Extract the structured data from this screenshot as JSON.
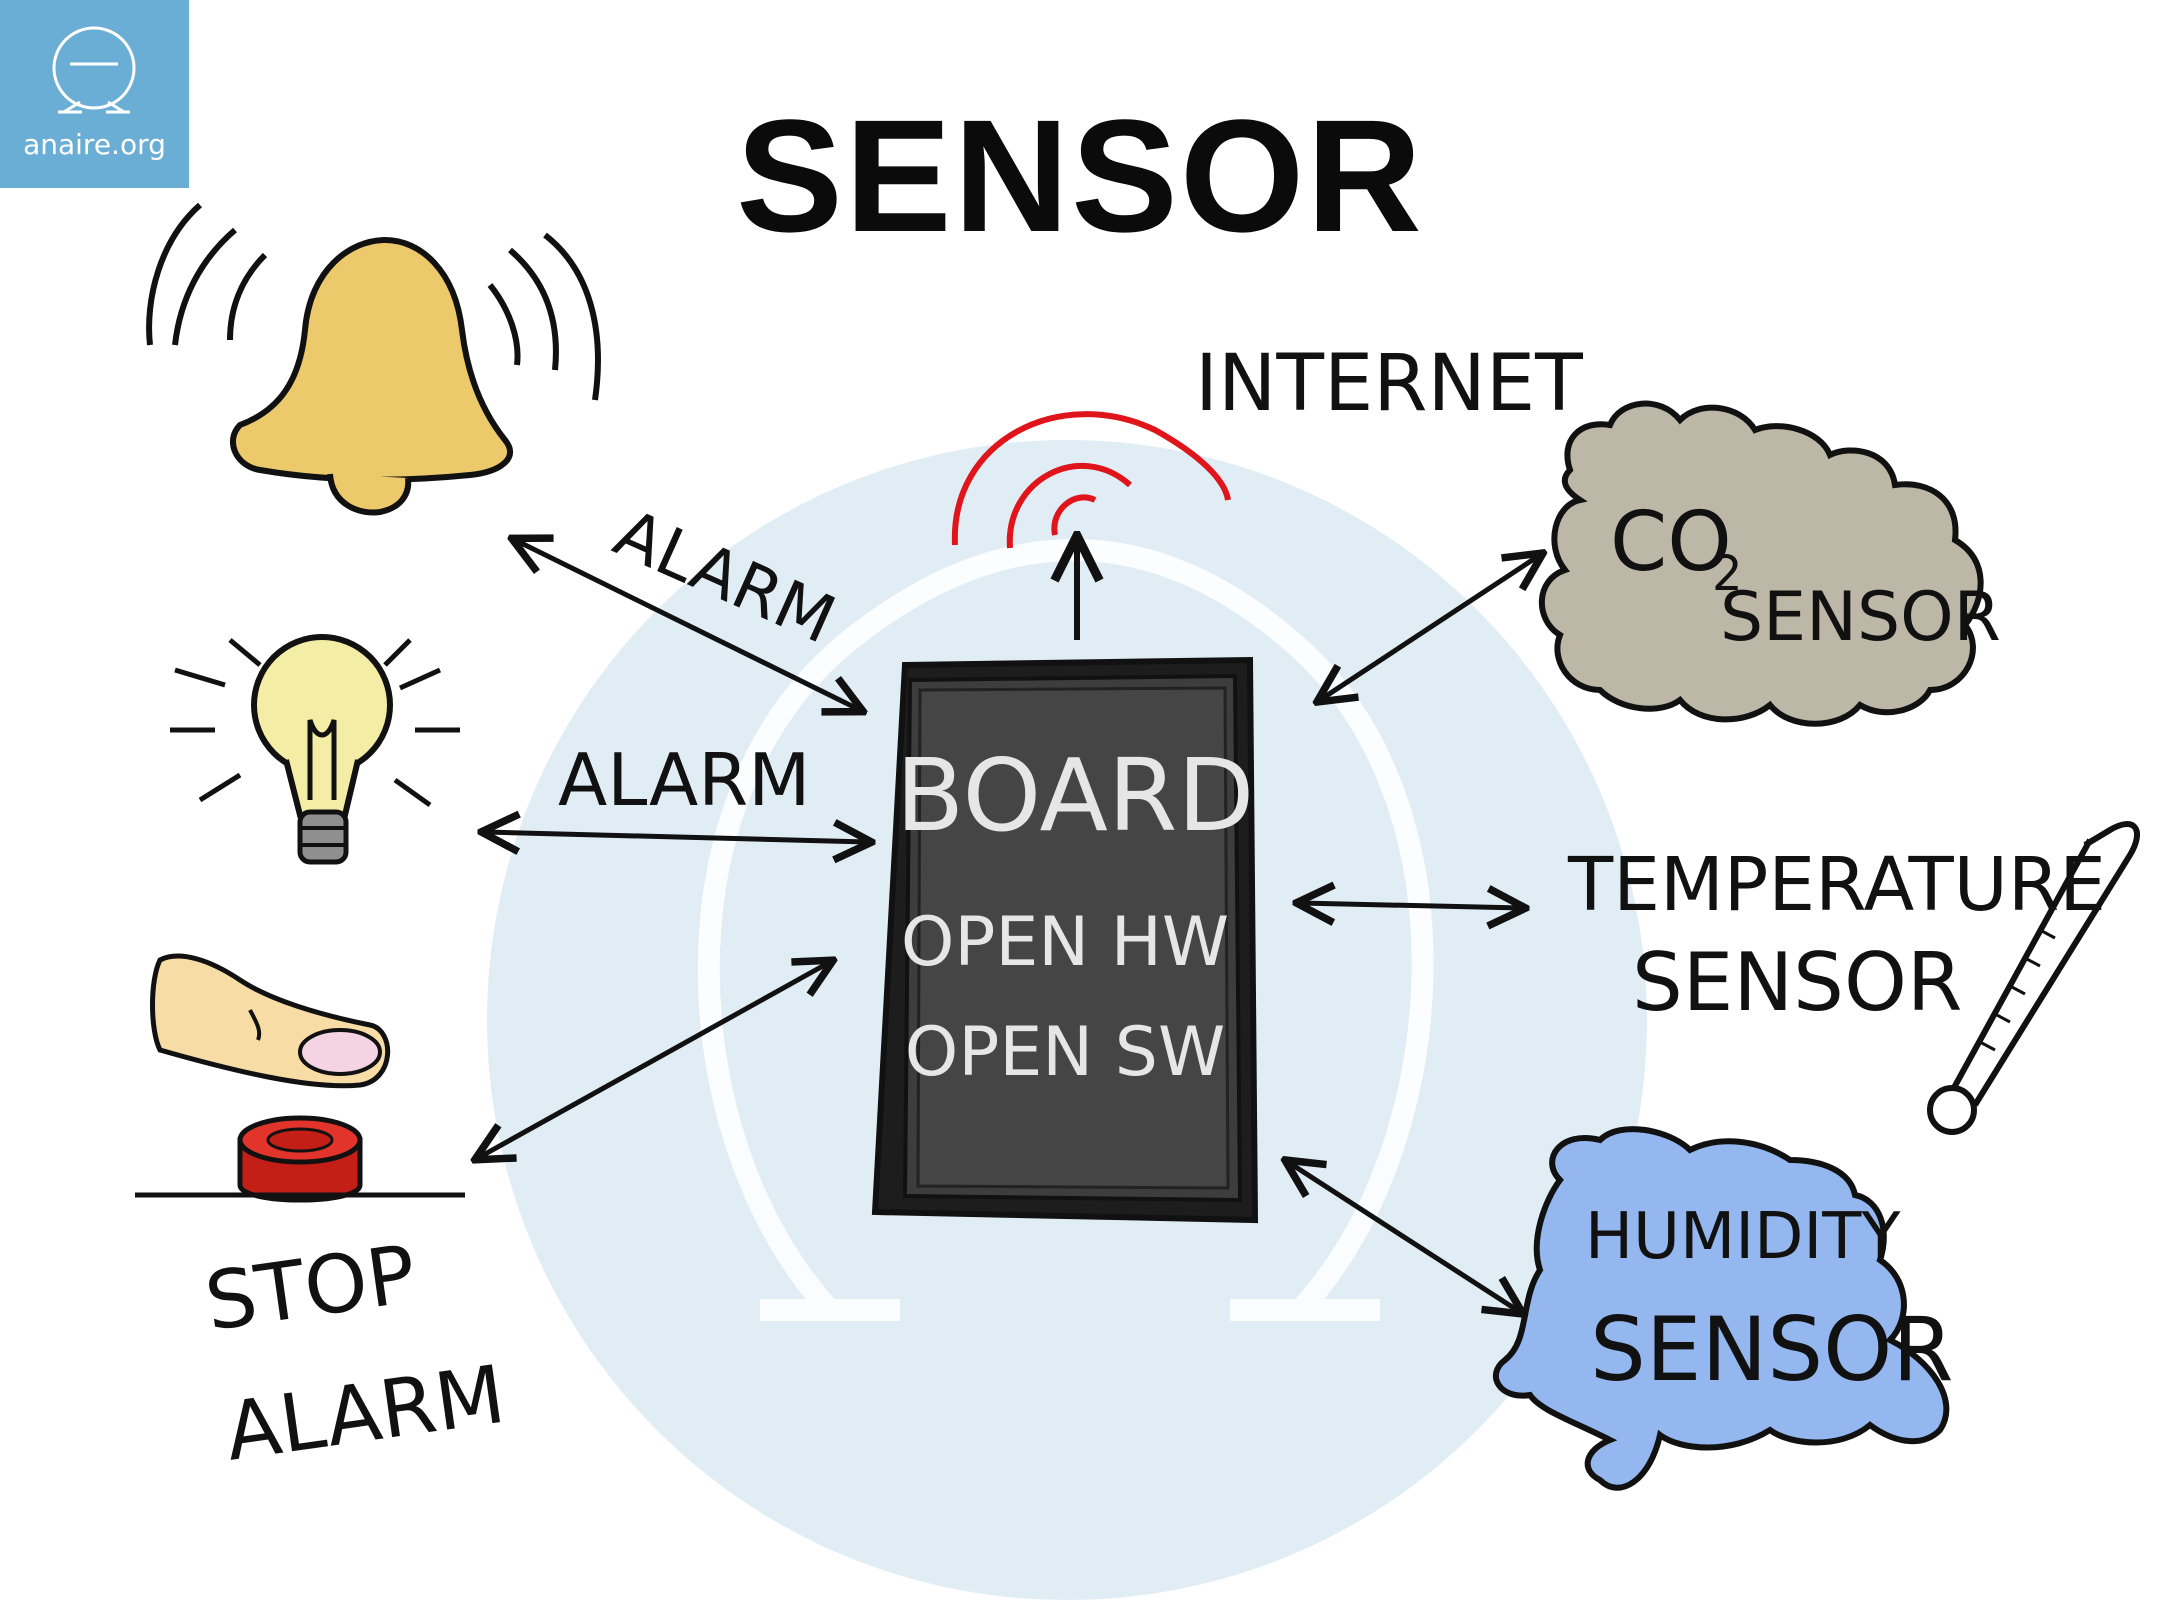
{
  "logo": {
    "text": "anaire.org"
  },
  "title": "SENSOR",
  "board": {
    "title": "BOARD",
    "line1": "OPEN HW",
    "line2": "OPEN SW"
  },
  "labels": {
    "internet": "INTERNET",
    "alarm_bell": "ALARM",
    "alarm_bulb": "ALARM",
    "stop_alarm_line1": "STOP",
    "stop_alarm_line2": "ALARM",
    "co2_main": "CO",
    "co2_sub": "2",
    "co2_sensor": "SENSOR",
    "temperature_line1": "TEMPERATURE",
    "temperature_line2": "SENSOR",
    "humidity_line1": "HUMIDITY",
    "humidity_line2": "SENSOR"
  },
  "colors": {
    "logo_bg": "#6aaed6",
    "background_circle": "#e1edf5",
    "bell": "#ecc96a",
    "bulb": "#f4eda6",
    "button": "#d82a20",
    "finger": "#f7dca6",
    "cloud": "#bdb7a7",
    "puddle": "#93b7ee",
    "board": "#3d3d3d",
    "wifi": "#e0141b"
  },
  "icons": [
    "omega-logo-icon",
    "bell-icon",
    "light-bulb-icon",
    "finger-icon",
    "stop-button-icon",
    "wifi-signal-icon",
    "co2-cloud-icon",
    "thermometer-icon",
    "humidity-puddle-icon",
    "board-icon"
  ]
}
